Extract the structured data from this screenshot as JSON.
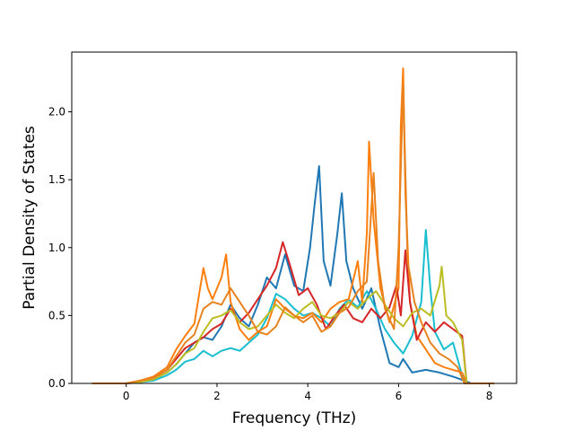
{
  "chart_data": {
    "type": "line",
    "title": "",
    "xlabel": "Frequency (THz)",
    "ylabel": "Partial Density of States",
    "xlim": [
      -1.2,
      8.6
    ],
    "ylim": [
      0.0,
      2.44
    ],
    "xticks": [
      0,
      2,
      4,
      6,
      8
    ],
    "xtick_labels": [
      "0",
      "2",
      "4",
      "6",
      "8"
    ],
    "yticks": [
      0.0,
      0.5,
      1.0,
      1.5,
      2.0
    ],
    "ytick_labels": [
      "0.0",
      "0.5",
      "1.0",
      "1.5",
      "2.0"
    ],
    "grid": false,
    "legend": "none",
    "series": [
      {
        "color": "#1f77b4",
        "points": [
          [
            -0.75,
            0
          ],
          [
            0,
            0
          ],
          [
            0.3,
            0.01
          ],
          [
            0.6,
            0.03
          ],
          [
            0.9,
            0.08
          ],
          [
            1.1,
            0.14
          ],
          [
            1.3,
            0.22
          ],
          [
            1.5,
            0.3
          ],
          [
            1.7,
            0.34
          ],
          [
            1.9,
            0.32
          ],
          [
            2.1,
            0.42
          ],
          [
            2.3,
            0.58
          ],
          [
            2.5,
            0.48
          ],
          [
            2.7,
            0.42
          ],
          [
            2.9,
            0.58
          ],
          [
            3.1,
            0.78
          ],
          [
            3.3,
            0.7
          ],
          [
            3.5,
            0.95
          ],
          [
            3.7,
            0.72
          ],
          [
            3.9,
            0.68
          ],
          [
            4.05,
            1.0
          ],
          [
            4.15,
            1.32
          ],
          [
            4.25,
            1.6
          ],
          [
            4.35,
            0.9
          ],
          [
            4.5,
            0.72
          ],
          [
            4.65,
            1.1
          ],
          [
            4.75,
            1.4
          ],
          [
            4.85,
            0.9
          ],
          [
            5.0,
            0.7
          ],
          [
            5.2,
            0.55
          ],
          [
            5.4,
            0.7
          ],
          [
            5.6,
            0.4
          ],
          [
            5.8,
            0.15
          ],
          [
            6.0,
            0.12
          ],
          [
            6.1,
            0.18
          ],
          [
            6.3,
            0.08
          ],
          [
            6.6,
            0.1
          ],
          [
            6.9,
            0.08
          ],
          [
            7.2,
            0.05
          ],
          [
            7.45,
            0.02
          ],
          [
            7.6,
            0.0
          ],
          [
            8.1,
            0.0
          ]
        ]
      },
      {
        "color": "#17becf",
        "points": [
          [
            -0.75,
            0
          ],
          [
            0,
            0
          ],
          [
            0.3,
            0.01
          ],
          [
            0.6,
            0.02
          ],
          [
            0.9,
            0.06
          ],
          [
            1.1,
            0.1
          ],
          [
            1.3,
            0.16
          ],
          [
            1.5,
            0.18
          ],
          [
            1.7,
            0.24
          ],
          [
            1.9,
            0.2
          ],
          [
            2.1,
            0.24
          ],
          [
            2.3,
            0.26
          ],
          [
            2.5,
            0.24
          ],
          [
            2.7,
            0.3
          ],
          [
            2.9,
            0.36
          ],
          [
            3.1,
            0.48
          ],
          [
            3.3,
            0.66
          ],
          [
            3.5,
            0.62
          ],
          [
            3.7,
            0.55
          ],
          [
            3.9,
            0.5
          ],
          [
            4.1,
            0.52
          ],
          [
            4.3,
            0.48
          ],
          [
            4.5,
            0.42
          ],
          [
            4.7,
            0.55
          ],
          [
            4.9,
            0.62
          ],
          [
            5.1,
            0.56
          ],
          [
            5.3,
            0.68
          ],
          [
            5.5,
            0.55
          ],
          [
            5.7,
            0.4
          ],
          [
            5.9,
            0.3
          ],
          [
            6.1,
            0.22
          ],
          [
            6.3,
            0.35
          ],
          [
            6.5,
            0.6
          ],
          [
            6.6,
            1.13
          ],
          [
            6.7,
            0.7
          ],
          [
            6.8,
            0.38
          ],
          [
            7.0,
            0.25
          ],
          [
            7.2,
            0.3
          ],
          [
            7.35,
            0.12
          ],
          [
            7.45,
            0.0
          ],
          [
            8.1,
            0.0
          ]
        ]
      },
      {
        "color": "#ff7f0e",
        "points": [
          [
            -0.75,
            0
          ],
          [
            0,
            0
          ],
          [
            0.3,
            0.02
          ],
          [
            0.6,
            0.05
          ],
          [
            0.9,
            0.12
          ],
          [
            1.1,
            0.25
          ],
          [
            1.3,
            0.35
          ],
          [
            1.5,
            0.44
          ],
          [
            1.7,
            0.85
          ],
          [
            1.8,
            0.7
          ],
          [
            1.9,
            0.62
          ],
          [
            2.1,
            0.78
          ],
          [
            2.2,
            0.95
          ],
          [
            2.3,
            0.6
          ],
          [
            2.5,
            0.4
          ],
          [
            2.7,
            0.32
          ],
          [
            2.9,
            0.38
          ],
          [
            3.1,
            0.42
          ],
          [
            3.3,
            0.62
          ],
          [
            3.5,
            0.55
          ],
          [
            3.7,
            0.5
          ],
          [
            3.9,
            0.48
          ],
          [
            4.1,
            0.52
          ],
          [
            4.3,
            0.45
          ],
          [
            4.5,
            0.55
          ],
          [
            4.7,
            0.6
          ],
          [
            4.9,
            0.62
          ],
          [
            5.1,
            0.9
          ],
          [
            5.2,
            0.6
          ],
          [
            5.3,
            1.1
          ],
          [
            5.35,
            1.78
          ],
          [
            5.45,
            1.2
          ],
          [
            5.6,
            0.7
          ],
          [
            5.8,
            0.45
          ],
          [
            6.0,
            0.7
          ],
          [
            6.05,
            1.9
          ],
          [
            6.1,
            2.32
          ],
          [
            6.15,
            1.4
          ],
          [
            6.25,
            0.6
          ],
          [
            6.4,
            0.35
          ],
          [
            6.6,
            0.25
          ],
          [
            6.8,
            0.15
          ],
          [
            7.0,
            0.12
          ],
          [
            7.2,
            0.1
          ],
          [
            7.4,
            0.08
          ],
          [
            7.5,
            0.0
          ],
          [
            8.1,
            0.0
          ]
        ]
      },
      {
        "color": "#d62728",
        "points": [
          [
            -0.75,
            0
          ],
          [
            0,
            0
          ],
          [
            0.3,
            0.01
          ],
          [
            0.6,
            0.04
          ],
          [
            0.9,
            0.1
          ],
          [
            1.1,
            0.18
          ],
          [
            1.3,
            0.26
          ],
          [
            1.5,
            0.3
          ],
          [
            1.7,
            0.34
          ],
          [
            1.9,
            0.4
          ],
          [
            2.1,
            0.44
          ],
          [
            2.3,
            0.55
          ],
          [
            2.5,
            0.45
          ],
          [
            2.7,
            0.52
          ],
          [
            2.9,
            0.62
          ],
          [
            3.1,
            0.72
          ],
          [
            3.3,
            0.85
          ],
          [
            3.45,
            1.04
          ],
          [
            3.6,
            0.88
          ],
          [
            3.8,
            0.65
          ],
          [
            4.0,
            0.7
          ],
          [
            4.2,
            0.58
          ],
          [
            4.4,
            0.4
          ],
          [
            4.6,
            0.5
          ],
          [
            4.8,
            0.58
          ],
          [
            5.0,
            0.48
          ],
          [
            5.2,
            0.45
          ],
          [
            5.4,
            0.55
          ],
          [
            5.6,
            0.48
          ],
          [
            5.8,
            0.56
          ],
          [
            5.95,
            0.72
          ],
          [
            6.05,
            0.5
          ],
          [
            6.15,
            0.98
          ],
          [
            6.25,
            0.6
          ],
          [
            6.4,
            0.32
          ],
          [
            6.6,
            0.45
          ],
          [
            6.8,
            0.38
          ],
          [
            7.0,
            0.45
          ],
          [
            7.2,
            0.4
          ],
          [
            7.4,
            0.35
          ],
          [
            7.5,
            0.0
          ],
          [
            8.1,
            0.0
          ]
        ]
      },
      {
        "color": "#bcbd22",
        "points": [
          [
            -0.75,
            0
          ],
          [
            0,
            0
          ],
          [
            0.3,
            0.01
          ],
          [
            0.6,
            0.03
          ],
          [
            0.9,
            0.08
          ],
          [
            1.1,
            0.14
          ],
          [
            1.3,
            0.22
          ],
          [
            1.5,
            0.26
          ],
          [
            1.7,
            0.38
          ],
          [
            1.9,
            0.48
          ],
          [
            2.1,
            0.5
          ],
          [
            2.3,
            0.54
          ],
          [
            2.5,
            0.45
          ],
          [
            2.7,
            0.4
          ],
          [
            2.9,
            0.42
          ],
          [
            3.1,
            0.5
          ],
          [
            3.3,
            0.58
          ],
          [
            3.5,
            0.52
          ],
          [
            3.7,
            0.48
          ],
          [
            3.9,
            0.55
          ],
          [
            4.1,
            0.6
          ],
          [
            4.3,
            0.5
          ],
          [
            4.5,
            0.48
          ],
          [
            4.7,
            0.52
          ],
          [
            4.9,
            0.6
          ],
          [
            5.1,
            0.55
          ],
          [
            5.3,
            0.62
          ],
          [
            5.5,
            0.68
          ],
          [
            5.7,
            0.58
          ],
          [
            5.9,
            0.48
          ],
          [
            6.1,
            0.42
          ],
          [
            6.3,
            0.52
          ],
          [
            6.5,
            0.55
          ],
          [
            6.7,
            0.5
          ],
          [
            6.9,
            0.72
          ],
          [
            6.95,
            0.86
          ],
          [
            7.05,
            0.5
          ],
          [
            7.2,
            0.45
          ],
          [
            7.4,
            0.32
          ],
          [
            7.5,
            0.0
          ],
          [
            8.1,
            0.0
          ]
        ]
      },
      {
        "color": "#e8821e",
        "points": [
          [
            -0.75,
            0
          ],
          [
            0,
            0
          ],
          [
            0.3,
            0.02
          ],
          [
            0.6,
            0.04
          ],
          [
            0.9,
            0.1
          ],
          [
            1.1,
            0.2
          ],
          [
            1.3,
            0.3
          ],
          [
            1.5,
            0.36
          ],
          [
            1.7,
            0.55
          ],
          [
            1.9,
            0.6
          ],
          [
            2.1,
            0.58
          ],
          [
            2.3,
            0.7
          ],
          [
            2.5,
            0.6
          ],
          [
            2.7,
            0.5
          ],
          [
            2.9,
            0.38
          ],
          [
            3.1,
            0.36
          ],
          [
            3.3,
            0.42
          ],
          [
            3.5,
            0.56
          ],
          [
            3.7,
            0.5
          ],
          [
            3.9,
            0.45
          ],
          [
            4.1,
            0.5
          ],
          [
            4.3,
            0.38
          ],
          [
            4.5,
            0.42
          ],
          [
            4.7,
            0.52
          ],
          [
            4.9,
            0.56
          ],
          [
            5.1,
            0.68
          ],
          [
            5.3,
            0.75
          ],
          [
            5.45,
            1.55
          ],
          [
            5.55,
            0.9
          ],
          [
            5.7,
            0.55
          ],
          [
            5.9,
            0.4
          ],
          [
            6.0,
            1.0
          ],
          [
            6.1,
            2.2
          ],
          [
            6.2,
            0.9
          ],
          [
            6.35,
            0.6
          ],
          [
            6.5,
            0.45
          ],
          [
            6.7,
            0.3
          ],
          [
            6.9,
            0.22
          ],
          [
            7.1,
            0.18
          ],
          [
            7.3,
            0.12
          ],
          [
            7.45,
            0.0
          ],
          [
            8.1,
            0.0
          ]
        ]
      }
    ]
  }
}
